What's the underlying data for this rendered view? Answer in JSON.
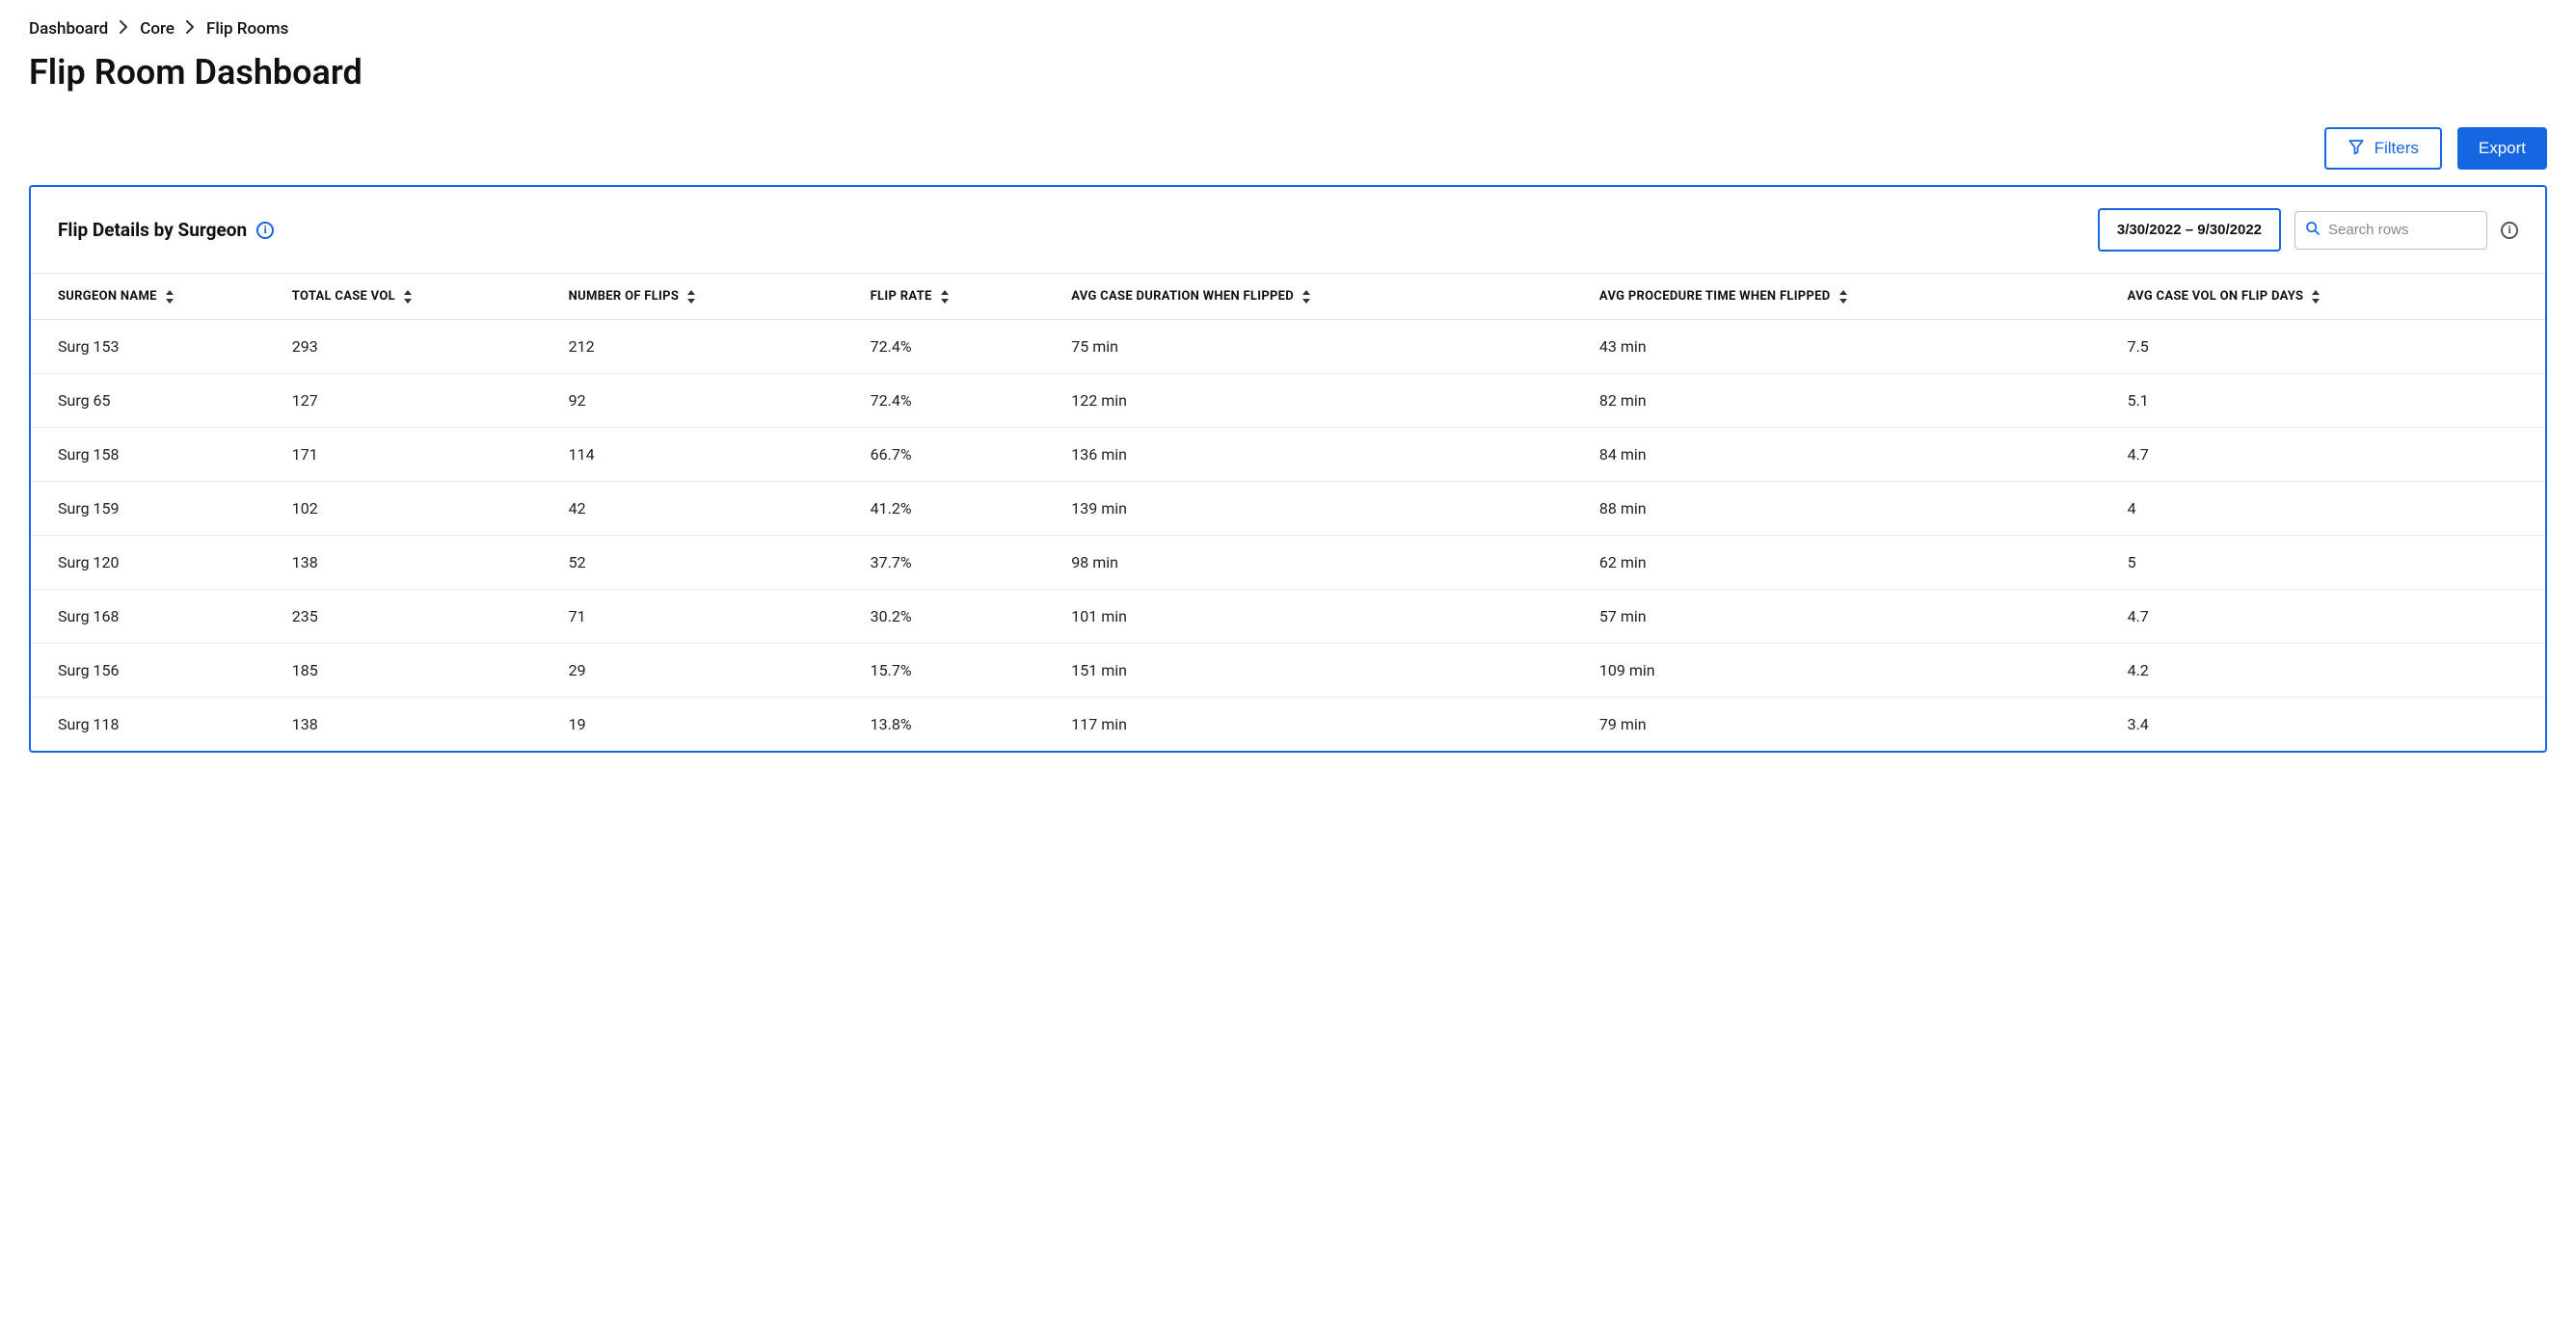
{
  "breadcrumb": {
    "items": [
      "Dashboard",
      "Core",
      "Flip Rooms"
    ]
  },
  "page_title": "Flip Room Dashboard",
  "actions": {
    "filters_label": "Filters",
    "export_label": "Export"
  },
  "panel": {
    "title": "Flip Details by Surgeon",
    "date_range": "3/30/2022 – 9/30/2022",
    "search_placeholder": "Search rows"
  },
  "table": {
    "columns": [
      {
        "label": "SURGEON NAME",
        "width": "10%"
      },
      {
        "label": "TOTAL CASE VOL",
        "width": "11%"
      },
      {
        "label": "NUMBER OF FLIPS",
        "width": "12%"
      },
      {
        "label": "FLIP RATE",
        "width": "8%"
      },
      {
        "label": "AVG CASE DURATION WHEN FLIPPED",
        "width": "21%"
      },
      {
        "label": "AVG PROCEDURE TIME WHEN FLIPPED",
        "width": "21%"
      },
      {
        "label": "AVG CASE VOL ON FLIP DAYS",
        "width": "17%"
      }
    ],
    "rows": [
      [
        "Surg 153",
        "293",
        "212",
        "72.4%",
        "75 min",
        "43 min",
        "7.5"
      ],
      [
        "Surg 65",
        "127",
        "92",
        "72.4%",
        "122 min",
        "82 min",
        "5.1"
      ],
      [
        "Surg 158",
        "171",
        "114",
        "66.7%",
        "136 min",
        "84 min",
        "4.7"
      ],
      [
        "Surg 159",
        "102",
        "42",
        "41.2%",
        "139 min",
        "88 min",
        "4"
      ],
      [
        "Surg 120",
        "138",
        "52",
        "37.7%",
        "98 min",
        "62 min",
        "5"
      ],
      [
        "Surg 168",
        "235",
        "71",
        "30.2%",
        "101 min",
        "57 min",
        "4.7"
      ],
      [
        "Surg 156",
        "185",
        "29",
        "15.7%",
        "151 min",
        "109 min",
        "4.2"
      ],
      [
        "Surg 118",
        "138",
        "19",
        "13.8%",
        "117 min",
        "79 min",
        "3.4"
      ]
    ]
  },
  "colors": {
    "accent": "#1566e0",
    "border_light": "#e3e3e3",
    "row_border": "#eeeeee",
    "text": "#111111",
    "placeholder": "#888888"
  }
}
